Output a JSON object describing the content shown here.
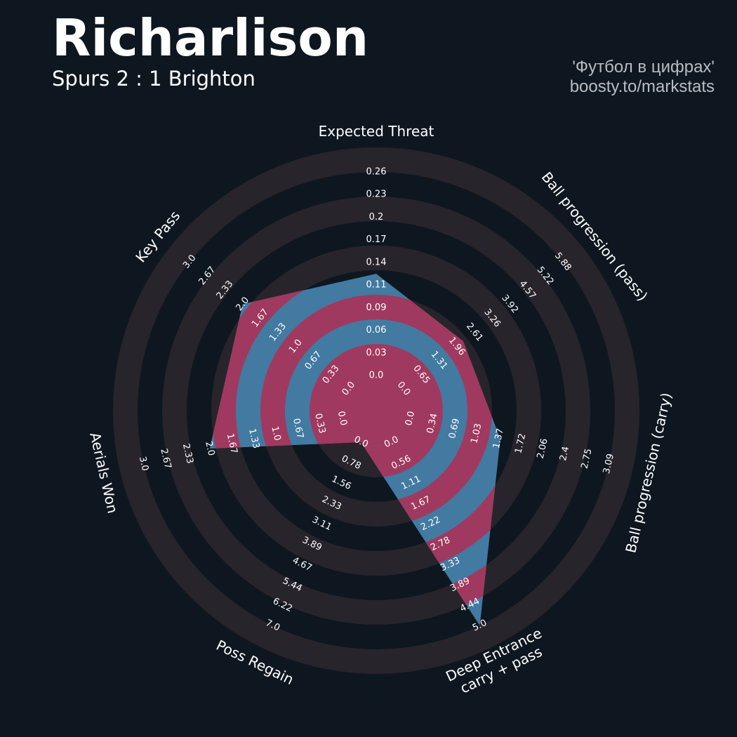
{
  "header": {
    "player": "Richarlison",
    "match": "Spurs 2 : 1 Brighton",
    "credit_line1": "'Футбол в цифрах'",
    "credit_line2": "boosty.to/markstats"
  },
  "chart_data": {
    "type": "radar",
    "title": "Richarlison",
    "subtitle": "Spurs 2 : 1 Brighton",
    "grid": true,
    "parameters": [
      {
        "label": [
          "Expected Threat"
        ],
        "min": 0.0,
        "max": 0.26,
        "value": 0.13,
        "ticks": [
          "0.0",
          "0.03",
          "0.06",
          "0.09",
          "0.11",
          "0.14",
          "0.17",
          "0.2",
          "0.23",
          "0.26"
        ]
      },
      {
        "label": [
          "Ball progression (pass)"
        ],
        "min": 0.0,
        "max": 5.88,
        "value": 2.2,
        "ticks": [
          "0.0",
          "0.65",
          "1.31",
          "1.96",
          "2.61",
          "3.26",
          "3.92",
          "4.57",
          "5.22",
          "5.88"
        ]
      },
      {
        "label": [
          "Ball progression (carry)"
        ],
        "min": 0.0,
        "max": 3.09,
        "value": 1.4,
        "ticks": [
          "0.0",
          "0.34",
          "0.69",
          "1.03",
          "1.37",
          "1.72",
          "2.06",
          "2.4",
          "2.75",
          "3.09"
        ]
      },
      {
        "label": [
          "Deep Entrance",
          "carry + pass"
        ],
        "min": 0.0,
        "max": 5.0,
        "value": 5.0,
        "ticks": [
          "0.0",
          "0.56",
          "1.11",
          "1.67",
          "2.22",
          "2.78",
          "3.33",
          "3.89",
          "4.44",
          "5.0"
        ]
      },
      {
        "label": [
          "Poss Regain"
        ],
        "min": 0.0,
        "max": 7.0,
        "value": 0.0,
        "ticks": [
          "0.0",
          "0.78",
          "1.56",
          "2.33",
          "3.11",
          "3.89",
          "4.67",
          "5.44",
          "6.22",
          "7.0"
        ]
      },
      {
        "label": [
          "Aerials Won"
        ],
        "min": 0.0,
        "max": 3.0,
        "value": 2.0,
        "ticks": [
          "0.0",
          "0.33",
          "0.67",
          "1.0",
          "1.33",
          "1.67",
          "2.0",
          "2.33",
          "2.67",
          "3.0"
        ]
      },
      {
        "label": [
          "Key Pass"
        ],
        "min": 0.0,
        "max": 3.0,
        "value": 2.0,
        "ticks": [
          "0.0",
          "0.33",
          "0.67",
          "1.0",
          "1.33",
          "1.67",
          "2.0",
          "2.33",
          "2.67",
          "3.0"
        ]
      }
    ],
    "colors": {
      "background": "#0e1720",
      "ring_outer": "#28242b",
      "ring_alt_in": "#a0395f",
      "polygon_fill": "#427aa1",
      "text": "#ffffff"
    }
  }
}
